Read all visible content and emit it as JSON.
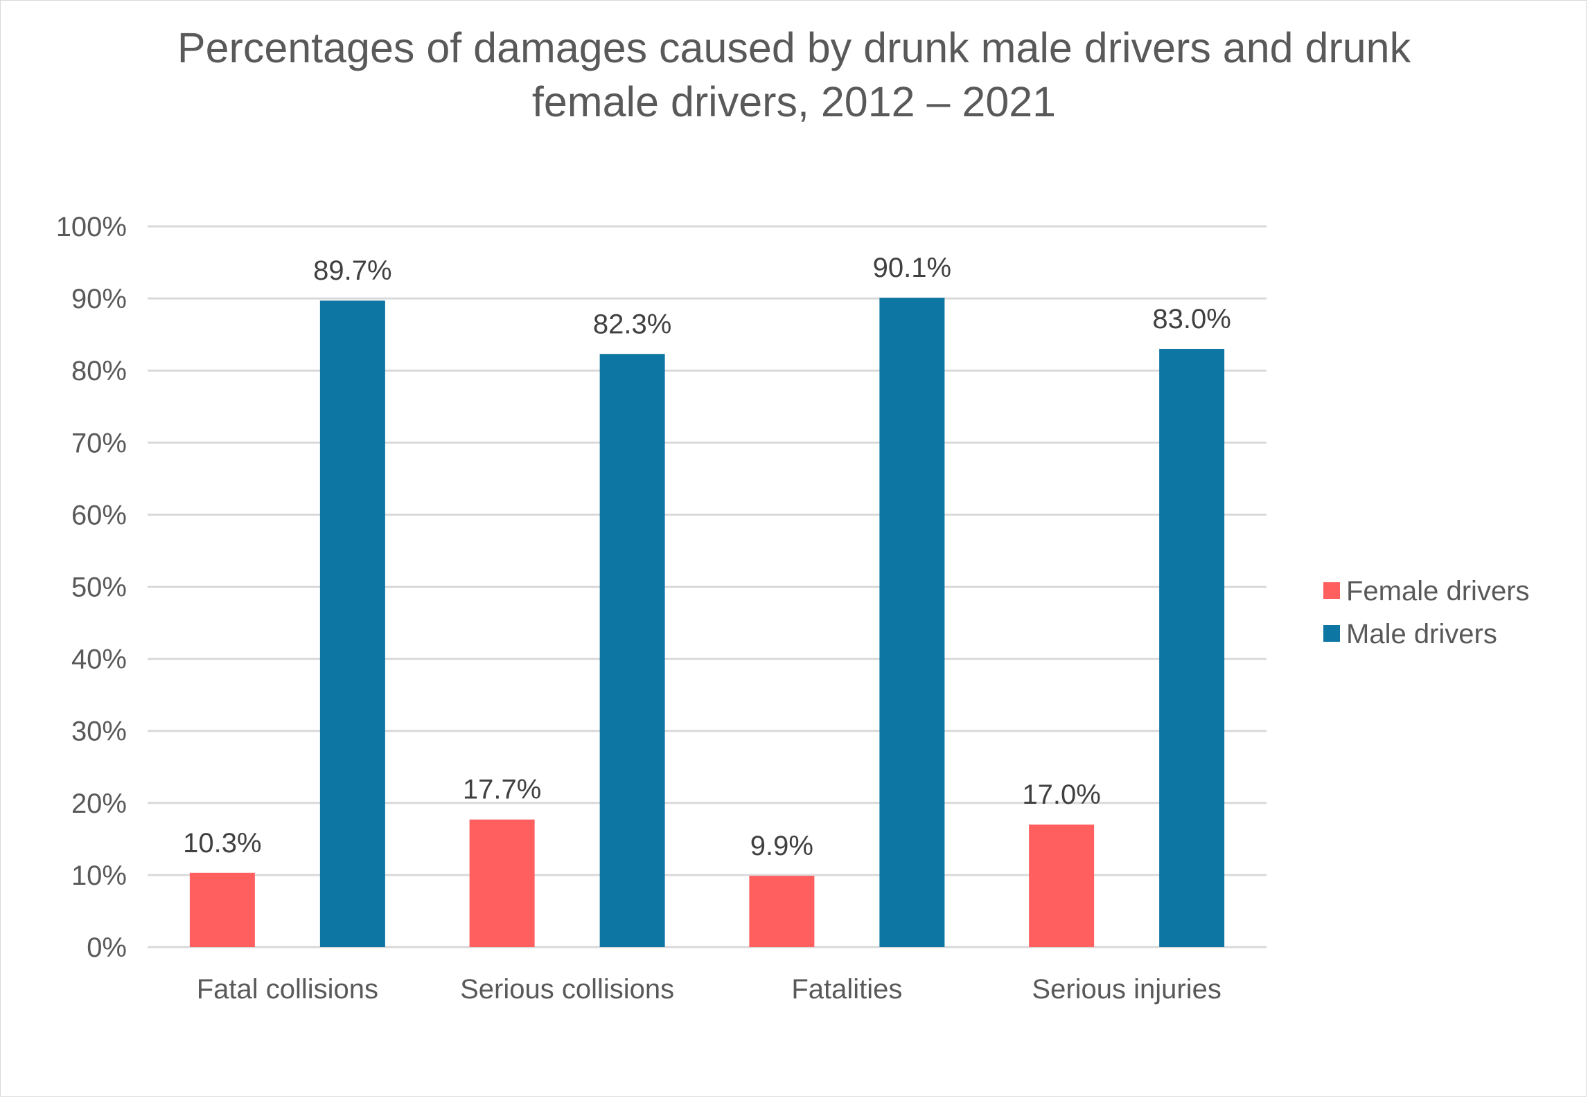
{
  "chart_data": {
    "type": "bar",
    "title_lines": [
      "Percentages of damages caused by drunk male drivers and drunk",
      "female drivers, 2012 – 2021"
    ],
    "categories": [
      "Fatal collisions",
      "Serious collisions",
      "Fatalities",
      "Serious injuries"
    ],
    "series": [
      {
        "name": "Female drivers",
        "color": "#ff5f5f",
        "values": [
          10.3,
          17.7,
          9.9,
          17.0
        ],
        "labels": [
          "10.3%",
          "17.7%",
          "9.9%",
          "17.0%"
        ]
      },
      {
        "name": "Male drivers",
        "color": "#0e76a3",
        "values": [
          89.7,
          82.3,
          90.1,
          83.0
        ],
        "labels": [
          "89.7%",
          "82.3%",
          "90.1%",
          "83.0%"
        ]
      }
    ],
    "y_ticks": [
      "0%",
      "10%",
      "20%",
      "30%",
      "40%",
      "50%",
      "60%",
      "70%",
      "80%",
      "90%",
      "100%"
    ],
    "ylim": [
      0,
      100
    ],
    "grid": true,
    "legend_position": "right",
    "gridline_color": "#d9d9d9"
  }
}
